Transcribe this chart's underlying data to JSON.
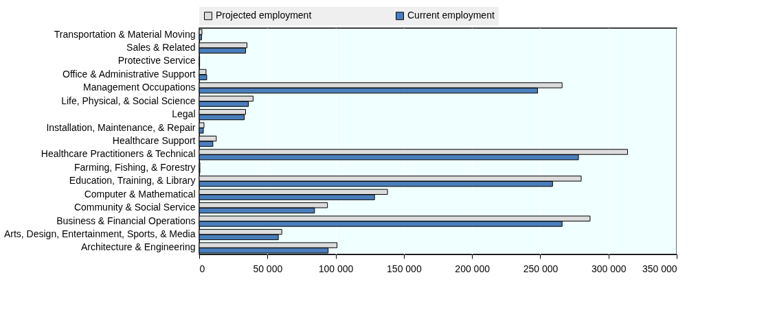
{
  "chart_data": {
    "type": "bar",
    "orientation": "horizontal",
    "categories": [
      "Transportation & Material Moving",
      "Sales & Related",
      "Protective Service",
      "Office & Administrative Support",
      "Management Occupations",
      "Life, Physical, & Social Science",
      "Legal",
      "Installation, Maintenance, & Repair",
      "Healthcare Support",
      "Healthcare Practitioners & Technical",
      "Farming, Fishing, & Forestry",
      "Education, Training, & Library",
      "Computer & Mathematical",
      "Community & Social Service",
      "Business & Financial Operations",
      "Arts, Design, Entertainment, Sports, & Media",
      "Architecture & Engineering"
    ],
    "series": [
      {
        "name": "Projected employment",
        "color": "#dcdcdc",
        "values": [
          2000,
          35000,
          300,
          5000,
          266000,
          39500,
          34000,
          3500,
          12500,
          314000,
          500,
          280000,
          138000,
          94000,
          286500,
          60500,
          101000
        ]
      },
      {
        "name": "Current employment",
        "color": "#4a7ebb",
        "values": [
          1700,
          34000,
          300,
          5500,
          248000,
          36000,
          33000,
          3000,
          10000,
          278000,
          500,
          259000,
          128500,
          84500,
          266000,
          58000,
          94500
        ]
      }
    ],
    "xlim": [
      0,
      350000
    ],
    "xticks": [
      0,
      {
        "value": 50000,
        "label": "50 000"
      },
      {
        "value": 100000,
        "label": "100 000"
      },
      {
        "value": 150000,
        "label": "150 000"
      },
      {
        "value": 200000,
        "label": "200 000"
      },
      {
        "value": 250000,
        "label": "250 000"
      },
      {
        "value": 300000,
        "label": "300 000"
      },
      {
        "value": 350000,
        "label": "350 000"
      }
    ],
    "grid": "x",
    "legend": "top"
  }
}
